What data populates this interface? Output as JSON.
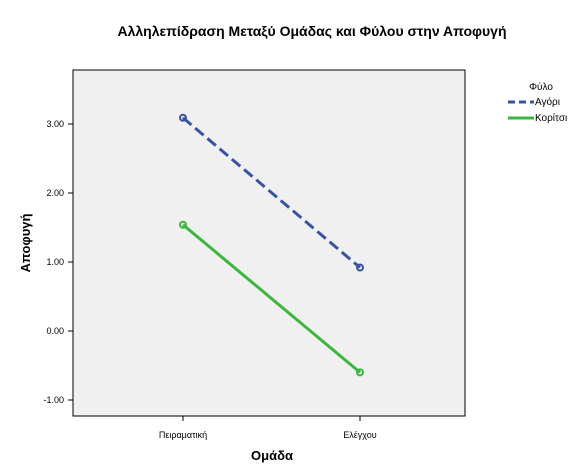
{
  "chart_data": {
    "type": "line",
    "title": "Αλληλεπίδραση Μεταξύ Ομάδας και Φύλου στην Αποφυγή",
    "xlabel": "Ομάδα",
    "ylabel": "Αποφυγή",
    "categories": [
      "Πειραματική",
      "Ελέγχου"
    ],
    "y_ticks": [
      3.0,
      2.0,
      1.0,
      0.0,
      -1.0
    ],
    "y_tick_labels": [
      "3.00",
      "2.00",
      "1.00",
      "0.00",
      "-1.00"
    ],
    "ylim": [
      -1.1,
      3.8
    ],
    "grid": false,
    "legend": {
      "title": "Φύλο",
      "position": "top-right"
    },
    "series": [
      {
        "name": "Αγόρι",
        "values": [
          3.09,
          0.92
        ],
        "color": "#3953a4",
        "style": "dashed"
      },
      {
        "name": "Κορίτσι",
        "values": [
          1.54,
          -0.6
        ],
        "color": "#3cb63c",
        "style": "solid"
      }
    ]
  }
}
